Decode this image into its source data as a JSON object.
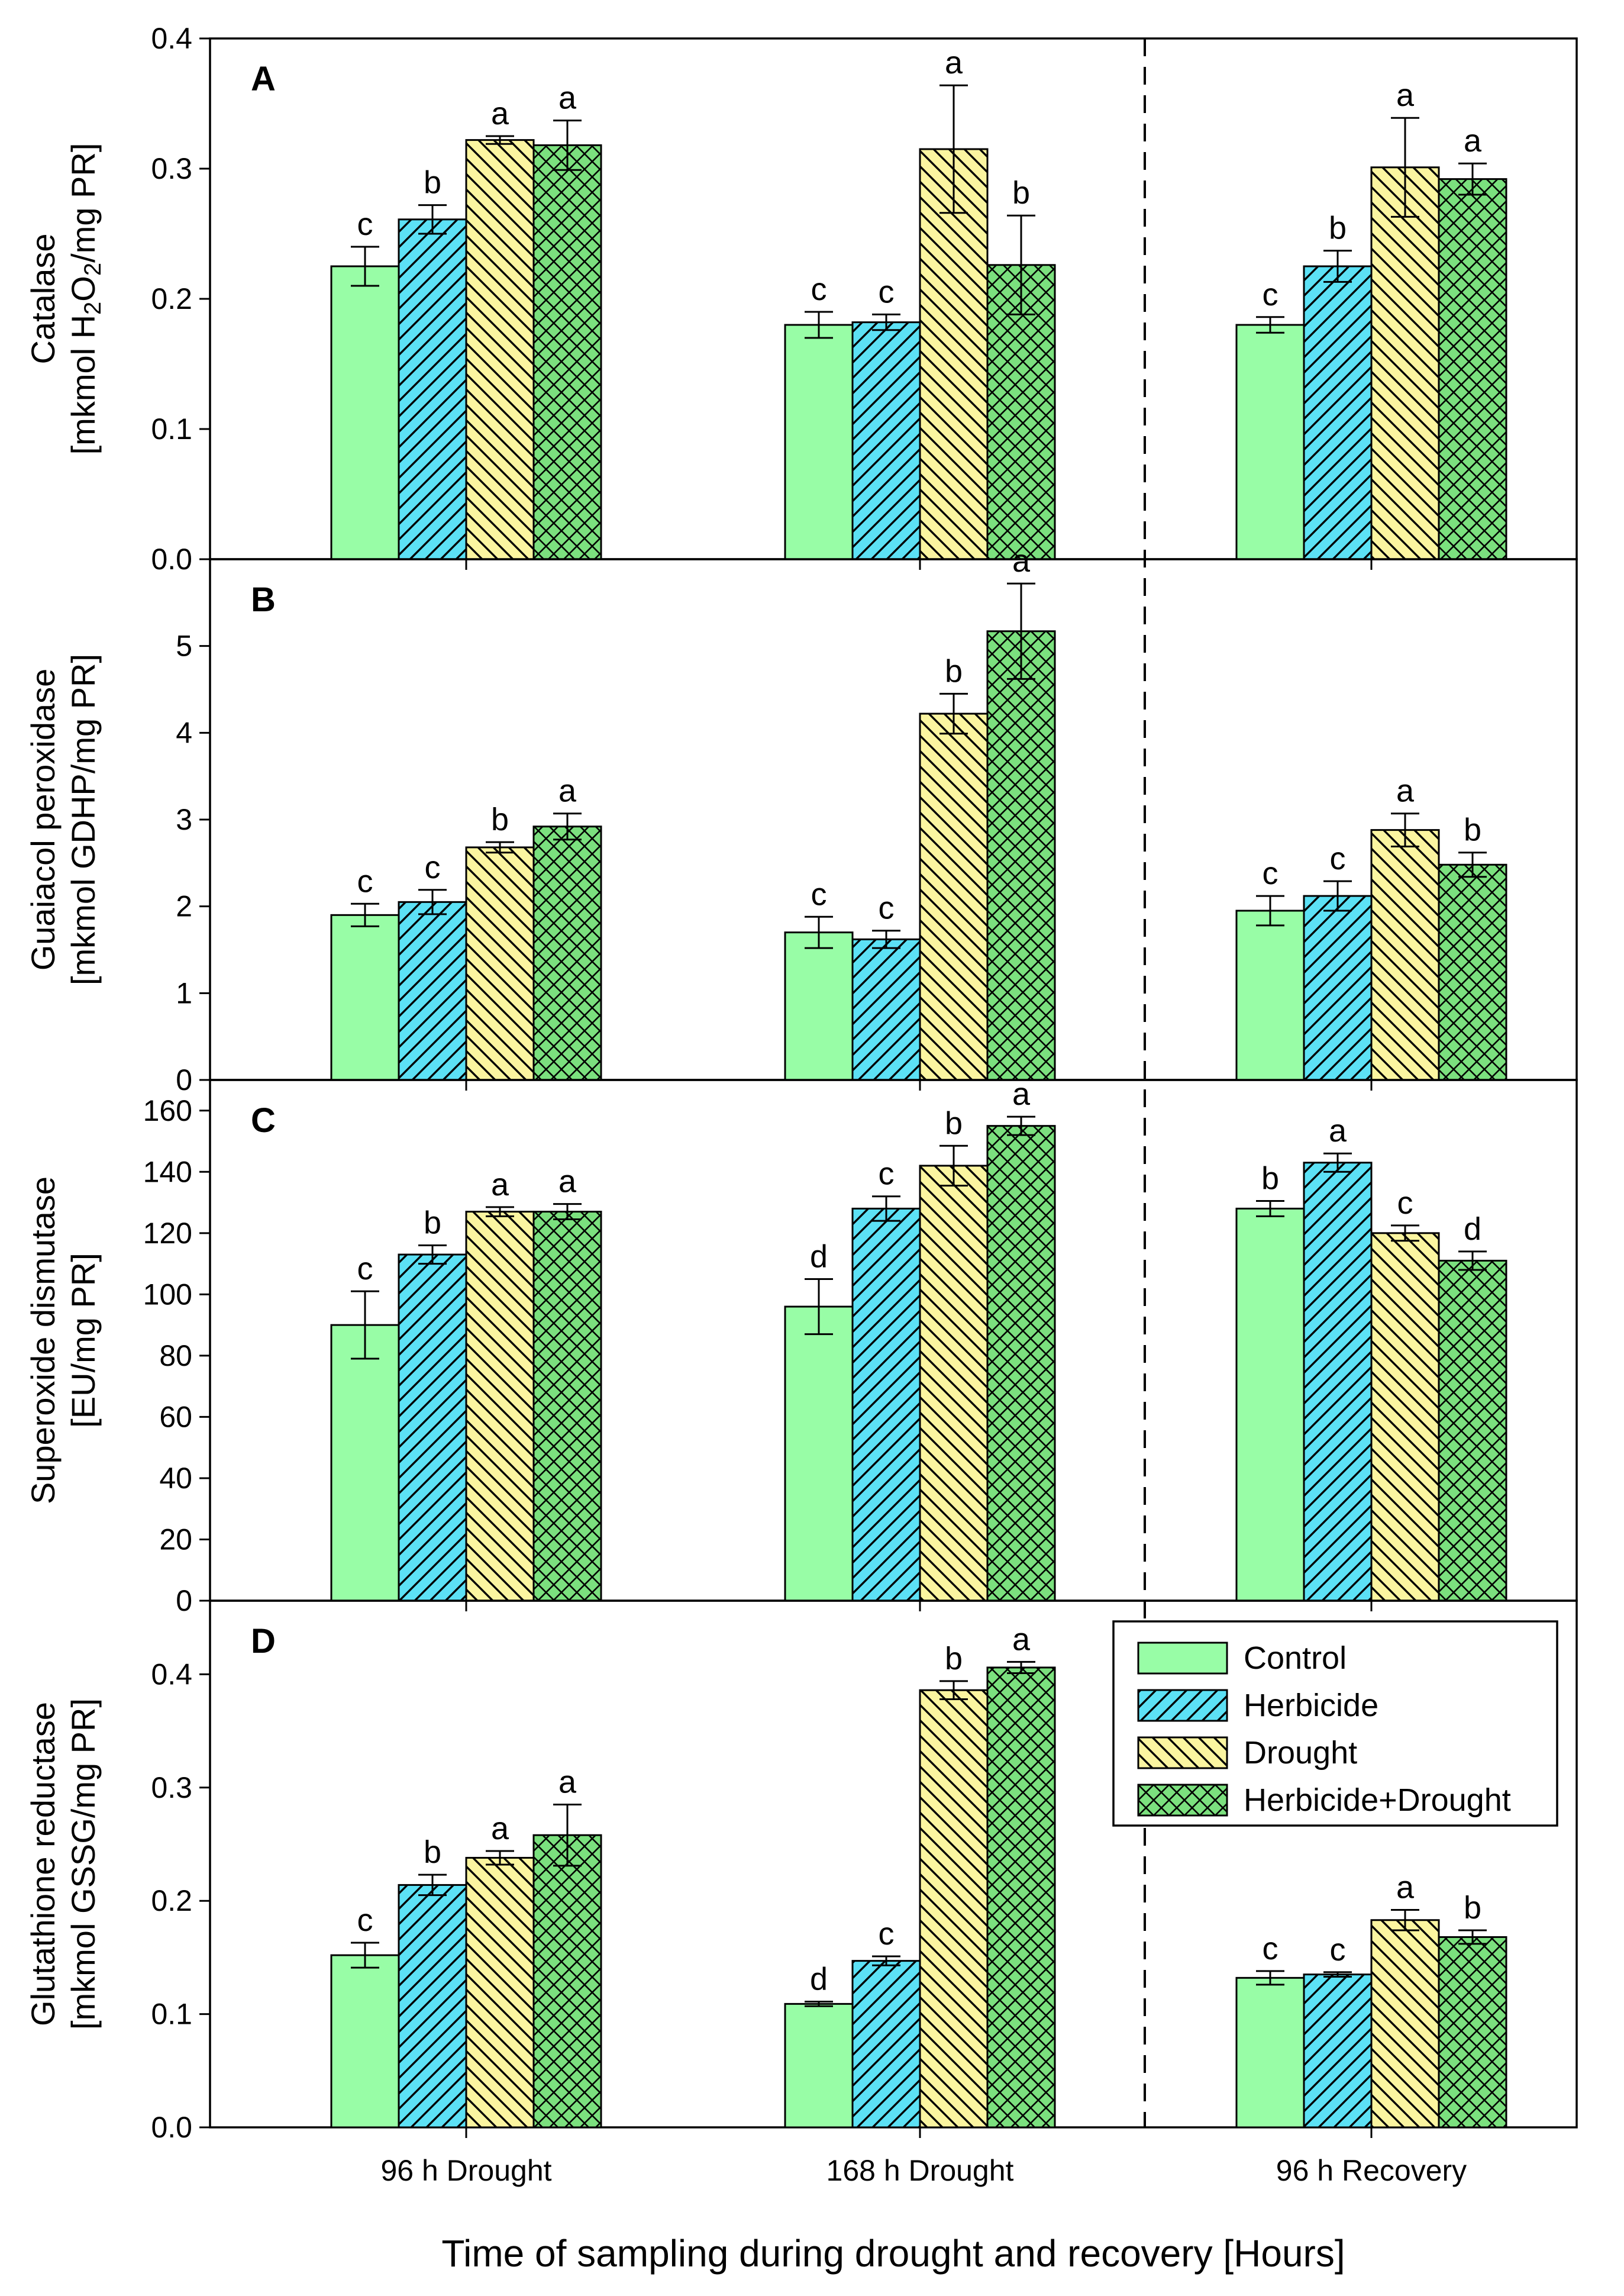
{
  "chart_data": {
    "type": "bar",
    "title": "",
    "xlabel": "Time of sampling during drought and recovery [Hours]",
    "categories": [
      "96 h Drought",
      "168 h Drought",
      "96 h Recovery"
    ],
    "treatments": [
      {
        "name": "Control",
        "color": "#98FDA6",
        "pattern": "solid"
      },
      {
        "name": "Herbicide",
        "color": "#5CE1F5",
        "pattern": "diagonal-right"
      },
      {
        "name": "Drought",
        "color": "#FBF5A0",
        "pattern": "diagonal-left"
      },
      {
        "name": "Herbicide+Drought",
        "color": "#7BE07E",
        "pattern": "crosshatch"
      }
    ],
    "legend_position": "top-right of panel D",
    "separator": "dashed vertical line between 168 h Drought and 96 h Recovery",
    "panels": [
      {
        "label": "A",
        "ylabel_line1": "Catalase",
        "ylabel_line2_parts": [
          "[mkmol H",
          "2",
          "O",
          "2",
          "/mg PR]"
        ],
        "ylim": [
          0,
          0.4
        ],
        "yticks": [
          "0.0",
          "0.1",
          "0.2",
          "0.3",
          "0.4"
        ],
        "series": [
          {
            "name": "Control",
            "values": [
              0.225,
              0.18,
              0.18
            ],
            "errors": [
              0.015,
              0.01,
              0.006
            ],
            "letters": [
              "c",
              "c",
              "c"
            ]
          },
          {
            "name": "Herbicide",
            "values": [
              0.261,
              0.182,
              0.225
            ],
            "errors": [
              0.011,
              0.006,
              0.012
            ],
            "letters": [
              "b",
              "c",
              "b"
            ]
          },
          {
            "name": "Drought",
            "values": [
              0.322,
              0.315,
              0.301
            ],
            "errors": [
              0.003,
              0.049,
              0.038
            ],
            "letters": [
              "a",
              "a",
              "a"
            ]
          },
          {
            "name": "Herbicide+Drought",
            "values": [
              0.318,
              0.226,
              0.292
            ],
            "errors": [
              0.019,
              0.038,
              0.012
            ],
            "letters": [
              "a",
              "b",
              "a"
            ]
          }
        ]
      },
      {
        "label": "B",
        "ylabel_line1": "Guaiacol peroxidase",
        "ylabel_line2": "[mkmol GDHP/mg PR]",
        "ylim": [
          0,
          6
        ],
        "yticks": [
          "0",
          "1",
          "2",
          "3",
          "4",
          "5"
        ],
        "series": [
          {
            "name": "Control",
            "values": [
              1.9,
              1.7,
              1.95
            ],
            "errors": [
              0.13,
              0.18,
              0.17
            ],
            "letters": [
              "c",
              "c",
              "c"
            ]
          },
          {
            "name": "Herbicide",
            "values": [
              2.05,
              1.62,
              2.12
            ],
            "errors": [
              0.14,
              0.1,
              0.17
            ],
            "letters": [
              "c",
              "c",
              "c"
            ]
          },
          {
            "name": "Drought",
            "values": [
              2.68,
              4.22,
              2.88
            ],
            "errors": [
              0.06,
              0.23,
              0.19
            ],
            "letters": [
              "b",
              "b",
              "a"
            ]
          },
          {
            "name": "Herbicide+Drought",
            "values": [
              2.92,
              5.17,
              2.48
            ],
            "errors": [
              0.15,
              0.55,
              0.14
            ],
            "letters": [
              "a",
              "a",
              "b"
            ]
          }
        ]
      },
      {
        "label": "C",
        "ylabel_line1": "Superoxide dismutase",
        "ylabel_line2": "[EU/mg PR]",
        "ylim": [
          0,
          170
        ],
        "yticks": [
          "0",
          "20",
          "40",
          "60",
          "80",
          "100",
          "120",
          "140",
          "160"
        ],
        "series": [
          {
            "name": "Control",
            "values": [
              90,
              96,
              128
            ],
            "errors": [
              11,
              9,
              2.5
            ],
            "letters": [
              "c",
              "d",
              "b"
            ]
          },
          {
            "name": "Herbicide",
            "values": [
              113,
              128,
              143
            ],
            "errors": [
              3,
              4,
              3
            ],
            "letters": [
              "b",
              "c",
              "a"
            ]
          },
          {
            "name": "Drought",
            "values": [
              127,
              142,
              120
            ],
            "errors": [
              1.5,
              6.5,
              2.5
            ],
            "letters": [
              "a",
              "b",
              "c"
            ]
          },
          {
            "name": "Herbicide+Drought",
            "values": [
              127,
              155,
              111
            ],
            "errors": [
              2.5,
              3,
              3
            ],
            "letters": [
              "a",
              "a",
              "d"
            ]
          }
        ]
      },
      {
        "label": "D",
        "ylabel_line1": "Glutathione reductase",
        "ylabel_line2": "[mkmol GSSG/mg PR]",
        "ylim": [
          0,
          0.465
        ],
        "yticks": [
          "0.0",
          "0.1",
          "0.2",
          "0.3",
          "0.4"
        ],
        "series": [
          {
            "name": "Control",
            "values": [
              0.152,
              0.109,
              0.132
            ],
            "errors": [
              0.011,
              0.002,
              0.006
            ],
            "letters": [
              "c",
              "d",
              "c"
            ]
          },
          {
            "name": "Herbicide",
            "values": [
              0.214,
              0.147,
              0.135
            ],
            "errors": [
              0.009,
              0.004,
              0.002
            ],
            "letters": [
              "b",
              "c",
              "c"
            ]
          },
          {
            "name": "Drought",
            "values": [
              0.238,
              0.386,
              0.183
            ],
            "errors": [
              0.006,
              0.008,
              0.009
            ],
            "letters": [
              "a",
              "b",
              "a"
            ]
          },
          {
            "name": "Herbicide+Drought",
            "values": [
              0.258,
              0.406,
              0.168
            ],
            "errors": [
              0.027,
              0.005,
              0.006
            ],
            "letters": [
              "a",
              "a",
              "b"
            ]
          }
        ]
      }
    ]
  }
}
